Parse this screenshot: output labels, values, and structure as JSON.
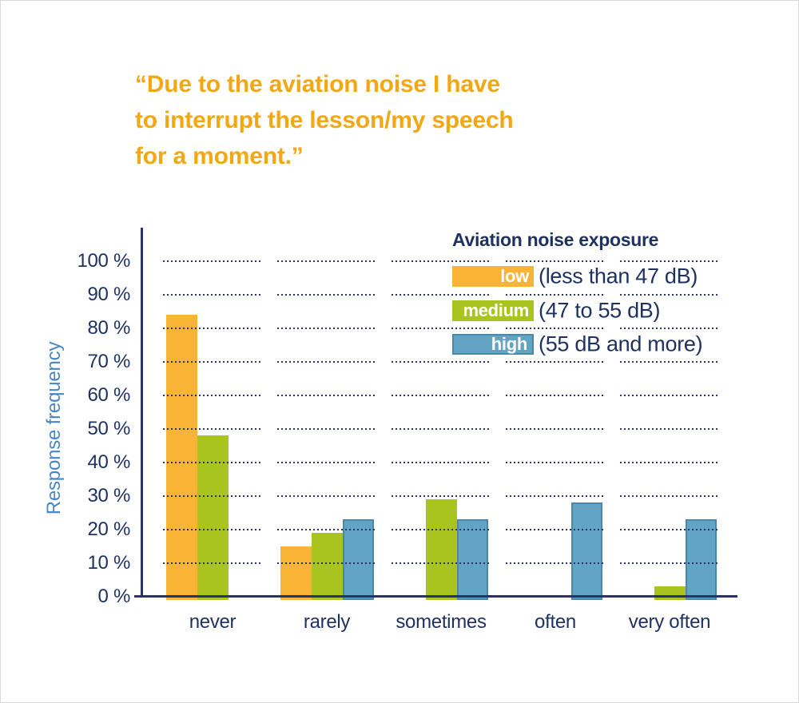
{
  "title": {
    "lines": [
      "“Due to the aviation noise I have",
      "to interrupt the lesson/my speech",
      "for a moment.”"
    ]
  },
  "legend": {
    "title": "Aviation noise exposure",
    "items": [
      {
        "label": "low",
        "desc": "(less than 47 dB)"
      },
      {
        "label": "medium",
        "desc": "(47 to 55 dB)"
      },
      {
        "label": "high",
        "desc": "(55 dB and more)"
      }
    ]
  },
  "chart_data": {
    "type": "bar",
    "title": "“Due to the aviation noise I have to interrupt the lesson/my speech for a moment.”",
    "categories": [
      "never",
      "rarely",
      "sometimes",
      "often",
      "very often"
    ],
    "series": [
      {
        "name": "low",
        "range": "less than 47 dB",
        "color": "#f9b435",
        "values": [
          84,
          15,
          null,
          null,
          null
        ]
      },
      {
        "name": "medium",
        "range": "47 to 55 dB",
        "color": "#a9c41e",
        "values": [
          48,
          19,
          29,
          null,
          3
        ]
      },
      {
        "name": "high",
        "range": "55 dB and more",
        "color": "#63a3c3",
        "border_color": "#4a87a9",
        "values": [
          null,
          23,
          23,
          28,
          23
        ]
      }
    ],
    "xlabel": "",
    "ylabel": "Response frequency",
    "ylim": [
      0,
      100
    ],
    "ytick_step": 10,
    "ytick_labels": [
      "0 %",
      "10 %",
      "20 %",
      "30 %",
      "40 %",
      "50 %",
      "60 %",
      "70 %",
      "80 %",
      "90 %",
      "100 %"
    ],
    "grid": "horizontal dotted, drawn in segments per category column, above bars",
    "legend_title": "Aviation noise exposure",
    "legend_position": "top-right inside plot area"
  },
  "colors": {
    "title_orange": "#f2a714",
    "navy_text": "#1e3262",
    "axis_navy": "#27316a",
    "grid_navy": "#2a3565",
    "ylabel_blue": "#4886c5"
  }
}
